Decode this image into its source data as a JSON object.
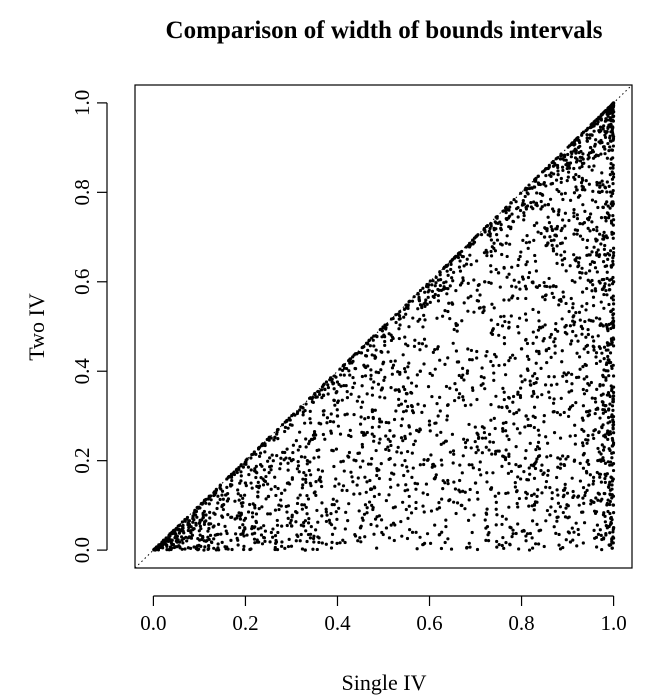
{
  "chart_data": {
    "type": "scatter",
    "title": "Comparison of width of bounds intervals",
    "xlabel": "Single IV",
    "ylabel": "Two IV",
    "xlim": [
      -0.04,
      1.04
    ],
    "ylim": [
      -0.04,
      1.04
    ],
    "xticks": [
      0.0,
      0.2,
      0.4,
      0.6,
      0.8,
      1.0
    ],
    "yticks": [
      0.0,
      0.2,
      0.4,
      0.6,
      0.8,
      1.0
    ],
    "xtick_labels": [
      "0.0",
      "0.2",
      "0.4",
      "0.6",
      "0.8",
      "1.0"
    ],
    "ytick_labels": [
      "0.0",
      "0.2",
      "0.4",
      "0.6",
      "0.8",
      "1.0"
    ],
    "reference_line": {
      "style": "dotted",
      "from": [
        0,
        0
      ],
      "to": [
        1,
        1
      ]
    },
    "grid": false,
    "point_color": "#000000",
    "series": [
      {
        "n_points": 3000,
        "distribution": "points fill triangle 0 <= y <= x <= 1, denser toward x = 1 and along diagonal",
        "x": [
          0.05,
          0.1,
          0.15,
          0.2,
          0.25,
          0.3,
          0.35,
          0.4,
          0.45,
          0.5,
          0.55,
          0.6,
          0.65,
          0.7,
          0.75,
          0.8,
          0.85,
          0.9,
          0.95,
          1.0,
          0.12,
          0.22,
          0.33,
          0.44,
          0.58,
          0.67,
          0.72,
          0.81,
          0.88,
          0.93,
          0.97,
          1.0,
          1.0,
          0.99,
          0.98,
          0.96
        ],
        "y": [
          0.02,
          0.06,
          0.1,
          0.15,
          0.12,
          0.2,
          0.25,
          0.3,
          0.05,
          0.42,
          0.35,
          0.28,
          0.55,
          0.15,
          0.62,
          0.45,
          0.7,
          0.86,
          0.9,
          0.98,
          0.01,
          0.1,
          0.0,
          0.2,
          0.4,
          0.1,
          0.6,
          0.3,
          0.75,
          0.5,
          0.8,
          0.05,
          0.6,
          0.95,
          0.7,
          0.88
        ]
      }
    ]
  }
}
